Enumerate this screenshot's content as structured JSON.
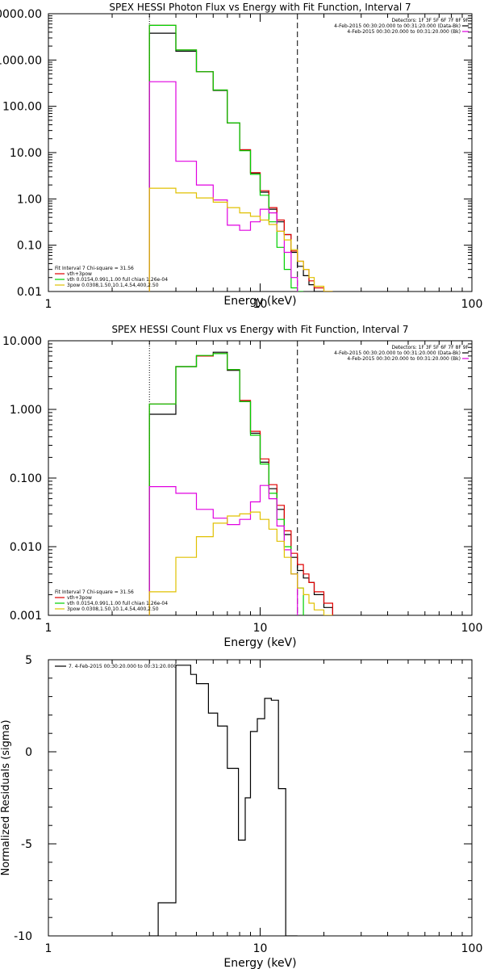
{
  "colors": {
    "black": "#000000",
    "red": "#e00000",
    "green": "#00d000",
    "magenta": "#e000e0",
    "yellow": "#e0c000"
  },
  "chart_data": [
    {
      "type": "line",
      "title": "SPEX HESSI Photon Flux vs Energy with Fit Function, Interval 7",
      "xlabel": "Energy (keV)",
      "ylabel": "",
      "xscale": "log",
      "yscale": "log",
      "xlim": [
        1,
        100
      ],
      "ylim": [
        0.01,
        10000
      ],
      "xtick_labels": [
        "1",
        "10",
        "100"
      ],
      "ytick_labels": [
        "0.01",
        "0.10",
        "1.00",
        "10.00",
        "100.00",
        "1000.00",
        "10000.00"
      ],
      "fit_range_keV": [
        3.0,
        15.0
      ],
      "bin_edges": [
        3.0,
        4.0,
        5.0,
        6.0,
        7.0,
        8.0,
        9.0,
        10.0,
        11.0,
        12.0,
        13.0,
        14.0,
        15.0,
        16.0,
        17.0,
        18.0,
        20.0,
        22.0
      ],
      "series": [
        {
          "color": "black",
          "values": [
            3800,
            1550,
            560,
            220,
            44,
            11.5,
            3.6,
            1.4,
            0.6,
            0.32,
            0.17,
            0.07,
            0.035,
            0.022,
            0.014,
            0.01,
            0.006
          ]
        },
        {
          "color": "red",
          "values": [
            5600,
            1650,
            560,
            225,
            44,
            11.5,
            3.7,
            1.5,
            0.65,
            0.35,
            0.17,
            0.075,
            0.045,
            0.03,
            0.017,
            0.012,
            0.009
          ]
        },
        {
          "color": "green",
          "values": [
            5600,
            1650,
            560,
            225,
            44,
            11,
            3.4,
            1.2,
            0.32,
            0.09,
            0.03,
            0.012,
            0.005
          ]
        },
        {
          "color": "magenta",
          "values": [
            340,
            6.5,
            2.0,
            0.95,
            0.27,
            0.21,
            0.32,
            0.6,
            0.5,
            0.2,
            0.07,
            0.02
          ]
        },
        {
          "color": "yellow",
          "values": [
            1.7,
            1.35,
            1.05,
            0.85,
            0.65,
            0.5,
            0.42,
            0.35,
            0.28,
            0.2,
            0.13,
            0.08,
            0.045,
            0.03,
            0.02,
            0.013,
            0.008
          ]
        }
      ],
      "legend_top": [
        {
          "text": "Detectors: 1F 3F 5F 6F 7F 8F 9F",
          "color": ""
        },
        {
          "text": "4-Feb-2015 00:30:20.000 to 00:31:20.000 (Data-Bk)",
          "color": "black"
        },
        {
          "text": "4-Feb-2015 00:30:20.000 to 00:31:20.000 (Bk)",
          "color": "magenta"
        }
      ],
      "legend_bottom": [
        {
          "text": "Fit Interval 7   Chi-square = 31.56",
          "color": ""
        },
        {
          "text": "vth+3pow",
          "color": "red"
        },
        {
          "text": "vth 0.0154,0.991,1.00  full chian 1.26e-04",
          "color": "green"
        },
        {
          "text": "3pow 0.0308,1.50,10.1,4.54,400,2.50",
          "color": "yellow"
        }
      ]
    },
    {
      "type": "line",
      "title": "SPEX HESSI Count Flux vs Energy with Fit Function, Interval 7",
      "xlabel": "Energy (keV)",
      "ylabel": "",
      "xscale": "log",
      "yscale": "log",
      "xlim": [
        1,
        100
      ],
      "ylim": [
        0.001,
        10
      ],
      "xtick_labels": [
        "1",
        "10",
        "100"
      ],
      "ytick_labels": [
        "0.001",
        "0.010",
        "0.100",
        "1.000",
        "10.000"
      ],
      "fit_range_keV": [
        3.0,
        15.0
      ],
      "bin_edges": [
        3.0,
        4.0,
        5.0,
        6.0,
        7.0,
        8.0,
        9.0,
        10.0,
        11.0,
        12.0,
        13.0,
        14.0,
        15.0,
        16.0,
        17.0,
        18.0,
        20.0,
        22.0
      ],
      "series": [
        {
          "color": "black",
          "values": [
            0.85,
            4.2,
            6.0,
            6.8,
            3.7,
            1.3,
            0.45,
            0.17,
            0.07,
            0.035,
            0.015,
            0.007,
            0.0045,
            0.0035,
            0.003,
            0.002,
            0.0013
          ]
        },
        {
          "color": "red",
          "values": [
            1.2,
            4.2,
            6.0,
            6.5,
            3.8,
            1.35,
            0.48,
            0.19,
            0.08,
            0.04,
            0.017,
            0.008,
            0.0055,
            0.004,
            0.003,
            0.0022,
            0.0015
          ]
        },
        {
          "color": "green",
          "values": [
            1.2,
            4.2,
            6.1,
            6.5,
            3.8,
            1.3,
            0.42,
            0.16,
            0.06,
            0.025,
            0.01,
            0.004,
            0.0025
          ]
        },
        {
          "color": "magenta",
          "values": [
            0.075,
            0.06,
            0.035,
            0.026,
            0.021,
            0.025,
            0.045,
            0.078,
            0.05,
            0.02,
            0.009,
            0.004
          ]
        },
        {
          "color": "yellow",
          "values": [
            0.0022,
            0.007,
            0.014,
            0.022,
            0.028,
            0.03,
            0.032,
            0.025,
            0.018,
            0.012,
            0.007,
            0.004,
            0.0025,
            0.002,
            0.0015,
            0.0012,
            0.0009
          ]
        }
      ],
      "legend_top": [
        {
          "text": "Detectors: 1F 3F 5F 6F 7F 8F 9F",
          "color": ""
        },
        {
          "text": "4-Feb-2015 00:30:20.000 to 00:31:20.000 (Data-Bk)",
          "color": "black"
        },
        {
          "text": "4-Feb-2015 00:30:20.000 to 00:31:20.000 (Bk)",
          "color": "magenta"
        }
      ],
      "legend_bottom": [
        {
          "text": "Fit Interval 7   Chi-square = 31.56",
          "color": ""
        },
        {
          "text": "vth+3pow",
          "color": "red"
        },
        {
          "text": "vth 0.0154,0.991,1.00  full chian 1.26e-04",
          "color": "green"
        },
        {
          "text": "3pow 0.0308,1.50,10.1,4.54,400,2.50",
          "color": "yellow"
        }
      ]
    },
    {
      "type": "line",
      "title": "",
      "xlabel": "Energy (keV)",
      "ylabel": "Normalized Residuals (sigma)",
      "xscale": "log",
      "yscale": "linear",
      "xlim": [
        1,
        100
      ],
      "ylim": [
        -10,
        5
      ],
      "xtick_labels": [
        "1",
        "10",
        "100"
      ],
      "ytick_labels": [
        "5",
        "0",
        "-5",
        "-10"
      ],
      "bin_edges": [
        3.0,
        3.3,
        4.0,
        4.7,
        5.0,
        5.7,
        6.3,
        7.0,
        7.9,
        8.5,
        9.0,
        9.7,
        10.5,
        11.3,
        12.2,
        13.2,
        15.0
      ],
      "series": [
        {
          "color": "black",
          "values": [
            -10,
            -8.2,
            4.7,
            4.2,
            3.7,
            2.1,
            1.4,
            -0.9,
            -4.8,
            -2.5,
            1.1,
            1.8,
            2.9,
            2.8,
            -2.0,
            -10
          ]
        }
      ],
      "legend_top": [
        {
          "text": "7.  4-Feb-2015 00:30:20.000 to 00:31:20.000",
          "color": "black"
        }
      ],
      "legend_bottom": []
    }
  ]
}
